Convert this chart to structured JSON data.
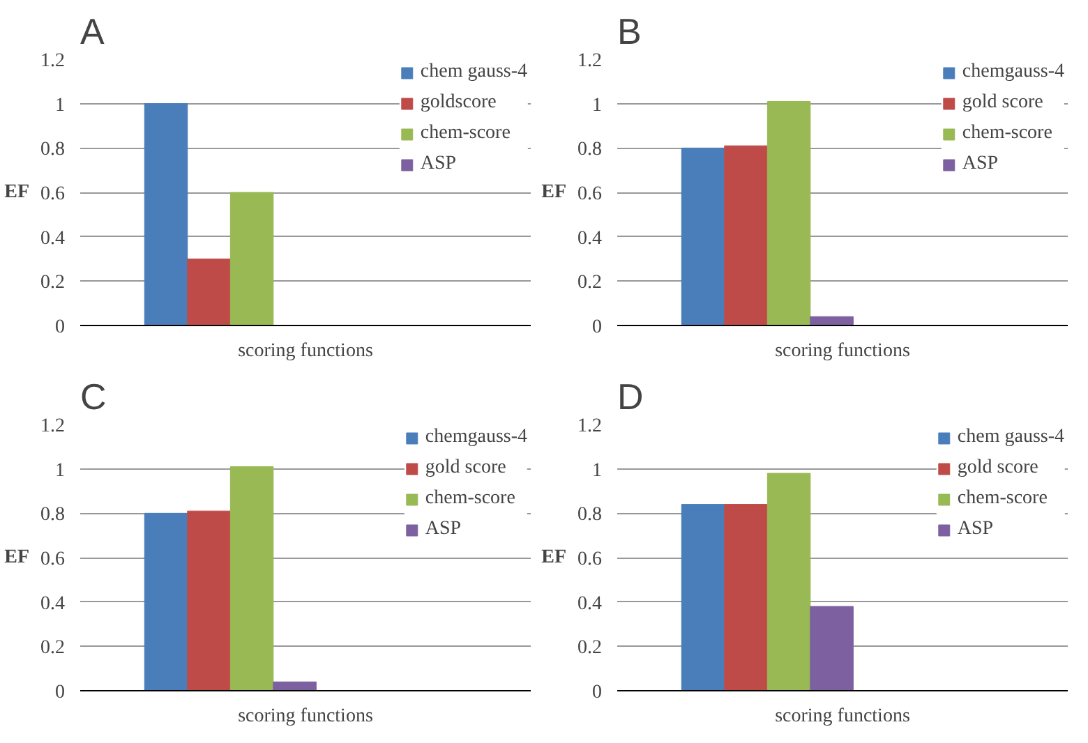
{
  "chart_data": [
    {
      "type": "bar",
      "title": "A",
      "xlabel": "scoring functions",
      "ylabel": "EF",
      "categories": [
        null
      ],
      "ylim": [
        0,
        1.2
      ],
      "yticks": [
        0,
        0.2,
        0.4,
        0.6,
        0.8,
        1,
        1.2
      ],
      "grid": "y",
      "legend": "right",
      "tick_labels": "y",
      "series": [
        {
          "name": "chem gauss-4",
          "color": "#4a7ebb",
          "values": [
            1.0
          ]
        },
        {
          "name": "goldscore",
          "color": "#be4b48",
          "values": [
            0.3
          ]
        },
        {
          "name": "chem-score",
          "color": "#98b954",
          "values": [
            0.6
          ]
        },
        {
          "name": "ASP",
          "color": "#7d60a0",
          "values": [
            0
          ]
        }
      ]
    },
    {
      "type": "bar",
      "title": "B",
      "xlabel": "scoring functions",
      "ylabel": "EF",
      "categories": [
        null
      ],
      "ylim": [
        0,
        1.2
      ],
      "yticks": [
        0,
        0.2,
        0.4,
        0.6,
        0.8,
        1,
        1.2
      ],
      "grid": "y",
      "legend": "right",
      "tick_labels": "y",
      "series": [
        {
          "name": "chemgauss-4",
          "color": "#4a7ebb",
          "values": [
            0.8
          ]
        },
        {
          "name": "gold score",
          "color": "#be4b48",
          "values": [
            0.81
          ]
        },
        {
          "name": "chem-score",
          "color": "#98b954",
          "values": [
            1.01
          ]
        },
        {
          "name": "ASP",
          "color": "#7d60a0",
          "values": [
            0.04
          ]
        }
      ]
    },
    {
      "type": "bar",
      "title": "C",
      "xlabel": "scoring functions",
      "ylabel": "EF",
      "categories": [
        null
      ],
      "ylim": [
        0,
        1.2
      ],
      "yticks": [
        0,
        0.2,
        0.4,
        0.6,
        0.8,
        1,
        1.2
      ],
      "grid": "y",
      "legend": "right",
      "tick_labels": "y",
      "series": [
        {
          "name": "chemgauss-4",
          "color": "#4a7ebb",
          "values": [
            0.8
          ]
        },
        {
          "name": "gold score",
          "color": "#be4b48",
          "values": [
            0.81
          ]
        },
        {
          "name": "chem-score",
          "color": "#98b954",
          "values": [
            1.01
          ]
        },
        {
          "name": "ASP",
          "color": "#7d60a0",
          "values": [
            0.04
          ]
        }
      ]
    },
    {
      "type": "bar",
      "title": "D",
      "xlabel": "scoring functions",
      "ylabel": "EF",
      "categories": [
        null
      ],
      "ylim": [
        0,
        1.2
      ],
      "yticks": [
        0,
        0.2,
        0.4,
        0.6,
        0.8,
        1,
        1.2
      ],
      "grid": "y",
      "legend": "right",
      "tick_labels": "y",
      "series": [
        {
          "name": "chem gauss-4",
          "color": "#4a7ebb",
          "values": [
            0.84
          ]
        },
        {
          "name": "gold score",
          "color": "#be4b48",
          "values": [
            0.84
          ]
        },
        {
          "name": "chem-score",
          "color": "#98b954",
          "values": [
            0.98
          ]
        },
        {
          "name": "ASP",
          "color": "#7d60a0",
          "values": [
            0.38
          ]
        }
      ]
    }
  ]
}
